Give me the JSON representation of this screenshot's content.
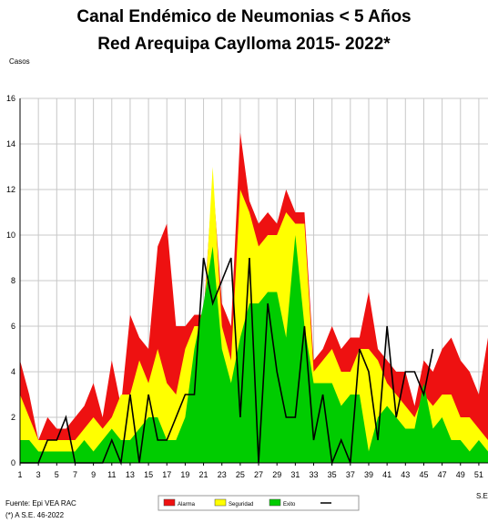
{
  "chart_data": {
    "type": "area",
    "title": "Canal Endémico de Neumonias < 5 Años",
    "subtitle": "Red Arequipa Caylloma 2015- 2022*",
    "ylabel": "Casos",
    "xlabel": "S.E",
    "ylim": [
      0,
      16
    ],
    "yticks": [
      0,
      2,
      4,
      6,
      8,
      10,
      12,
      14,
      16
    ],
    "xticks": [
      "1",
      "3",
      "5",
      "7",
      "9",
      "11",
      "13",
      "15",
      "17",
      "19",
      "21",
      "23",
      "25",
      "27",
      "29",
      "31",
      "33",
      "35",
      "37",
      "39",
      "41",
      "43",
      "45",
      "47",
      "49",
      "51"
    ],
    "x": [
      1,
      2,
      3,
      4,
      5,
      6,
      7,
      8,
      9,
      10,
      11,
      12,
      13,
      14,
      15,
      16,
      17,
      18,
      19,
      20,
      21,
      22,
      23,
      24,
      25,
      26,
      27,
      28,
      29,
      30,
      31,
      32,
      33,
      34,
      35,
      36,
      37,
      38,
      39,
      40,
      41,
      42,
      43,
      44,
      45,
      46,
      47,
      48,
      49,
      50,
      51,
      52
    ],
    "grid": true,
    "legend_position": "bottom",
    "series": [
      {
        "name": "Alarma",
        "color": "#ee1111",
        "values": [
          4.5,
          3,
          1,
          2,
          1.5,
          1.5,
          2,
          2.5,
          3.5,
          2,
          4.5,
          2.5,
          6.5,
          5.5,
          5,
          9.5,
          10.5,
          6,
          6,
          6.5,
          6.5,
          12.5,
          7,
          6,
          14.5,
          11.5,
          10.5,
          11,
          10.5,
          12,
          11,
          11,
          4.5,
          5,
          6,
          5,
          5.5,
          5.5,
          7.5,
          5,
          4.5,
          4,
          4,
          2.5,
          4.5,
          4,
          5,
          5.5,
          4.5,
          4,
          3,
          5.5
        ]
      },
      {
        "name": "Seguridad",
        "color": "#ffff00",
        "values": [
          3,
          2,
          1,
          1,
          1,
          1,
          1,
          1.5,
          2,
          1.5,
          2,
          3,
          3,
          4.5,
          3.5,
          5,
          3.5,
          3,
          5,
          6,
          6,
          13,
          6,
          4.5,
          12,
          11,
          9.5,
          10,
          10,
          11,
          10.5,
          10.5,
          4,
          4.5,
          5,
          4,
          4,
          5,
          5,
          4.5,
          3.5,
          3,
          2.5,
          2,
          3,
          2.5,
          3,
          3,
          2,
          2,
          1.5,
          1
        ]
      },
      {
        "name": "Exito",
        "color": "#00cc00",
        "values": [
          1,
          1,
          0.5,
          0.5,
          0.5,
          0.5,
          0.5,
          1,
          0.5,
          1,
          1.5,
          1,
          1,
          1.5,
          2,
          2,
          1,
          1,
          2,
          5,
          7,
          9.5,
          5,
          3.5,
          5.5,
          7,
          7,
          7.5,
          7.5,
          5.5,
          10,
          6,
          3.5,
          3.5,
          3.5,
          2.5,
          3,
          3,
          0.5,
          2,
          2.5,
          2,
          1.5,
          1.5,
          3.5,
          1.5,
          2,
          1,
          1,
          0.5,
          1,
          0.5
        ]
      },
      {
        "name": "",
        "color": "#000000",
        "values": [
          0,
          0,
          0,
          1,
          1,
          2,
          0,
          0,
          0,
          0,
          1,
          0,
          3,
          0,
          3,
          1,
          1,
          2,
          3,
          3,
          9,
          7,
          8,
          9,
          2,
          9,
          0,
          7,
          4,
          2,
          2,
          6,
          1,
          3,
          0,
          1,
          0,
          5,
          4,
          1,
          6,
          2,
          4,
          4,
          3,
          5,
          null,
          null,
          null,
          null,
          null,
          null
        ]
      }
    ]
  },
  "footer": {
    "source": "Fuente: Epi VEA RAC",
    "note": "(*) A S.E. 46-2022"
  }
}
